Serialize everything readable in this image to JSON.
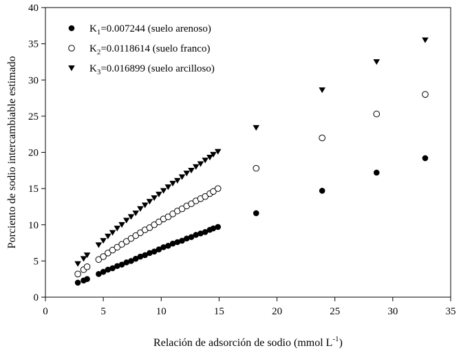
{
  "chart_data": {
    "type": "scatter",
    "xlabel": "Relación de adsorción de sodio (mmol L",
    "xlabel_sup": "-1",
    "xlabel_end": ")",
    "ylabel": "Porciento de sodio intercambiable estimado",
    "xlim": [
      0,
      35
    ],
    "ylim": [
      0,
      40
    ],
    "xticks": [
      0,
      5,
      10,
      15,
      20,
      25,
      30,
      35
    ],
    "yticks": [
      0,
      5,
      10,
      15,
      20,
      25,
      30,
      35,
      40
    ],
    "legend_position": "top-left",
    "series": [
      {
        "name": "K1=0.007244 (suelo arenoso)",
        "legend_prefix": "K",
        "legend_sub": "1",
        "legend_rest": "=0.007244 (suelo arenoso)",
        "marker": "filled-circle",
        "k": 0.007244,
        "x": [
          2.8,
          3.3,
          3.6,
          4.6,
          5.0,
          5.4,
          5.8,
          6.2,
          6.6,
          7.0,
          7.4,
          7.8,
          8.2,
          8.6,
          9.0,
          9.4,
          9.8,
          10.2,
          10.6,
          11.0,
          11.4,
          11.8,
          12.2,
          12.6,
          13.0,
          13.4,
          13.8,
          14.2,
          14.5,
          14.9,
          18.2,
          23.9,
          28.6,
          32.8
        ],
        "y": [
          2.0,
          2.3,
          2.5,
          3.2,
          3.5,
          3.8,
          4.0,
          4.3,
          4.5,
          4.8,
          5.0,
          5.3,
          5.6,
          5.8,
          6.1,
          6.3,
          6.6,
          6.9,
          7.1,
          7.4,
          7.6,
          7.8,
          8.1,
          8.3,
          8.6,
          8.8,
          9.0,
          9.3,
          9.5,
          9.7,
          11.6,
          14.7,
          17.2,
          19.2
        ]
      },
      {
        "name": "K2=0.0118614 (suelo franco)",
        "legend_prefix": "K",
        "legend_sub": "2",
        "legend_rest": "=0.0118614 (suelo franco)",
        "marker": "open-circle",
        "k": 0.0118614,
        "x": [
          2.8,
          3.3,
          3.6,
          4.6,
          5.0,
          5.4,
          5.8,
          6.2,
          6.6,
          7.0,
          7.4,
          7.8,
          8.2,
          8.6,
          9.0,
          9.4,
          9.8,
          10.2,
          10.6,
          11.0,
          11.4,
          11.8,
          12.2,
          12.6,
          13.0,
          13.4,
          13.8,
          14.2,
          14.5,
          14.9,
          18.2,
          23.9,
          28.6,
          32.8
        ],
        "y": [
          3.2,
          3.8,
          4.2,
          5.2,
          5.6,
          6.1,
          6.5,
          6.9,
          7.3,
          7.7,
          8.1,
          8.5,
          8.9,
          9.3,
          9.6,
          10.0,
          10.4,
          10.8,
          11.1,
          11.5,
          11.9,
          12.2,
          12.6,
          12.9,
          13.3,
          13.6,
          13.9,
          14.3,
          14.6,
          15.0,
          17.8,
          22.0,
          25.3,
          28.0
        ]
      },
      {
        "name": "K3=0.016899 (suelo arcilloso)",
        "legend_prefix": "K",
        "legend_sub": "3",
        "legend_rest": "=0.016899 (suelo arcilloso)",
        "marker": "filled-triangle-down",
        "k": 0.016899,
        "x": [
          2.8,
          3.3,
          3.6,
          4.6,
          5.0,
          5.4,
          5.8,
          6.2,
          6.6,
          7.0,
          7.4,
          7.8,
          8.2,
          8.6,
          9.0,
          9.4,
          9.8,
          10.2,
          10.6,
          11.0,
          11.4,
          11.8,
          12.2,
          12.6,
          13.0,
          13.4,
          13.8,
          14.2,
          14.5,
          14.9,
          18.2,
          23.9,
          28.6,
          32.8
        ],
        "y": [
          4.6,
          5.3,
          5.8,
          7.2,
          7.8,
          8.4,
          8.9,
          9.5,
          10.0,
          10.6,
          11.1,
          11.6,
          12.2,
          12.7,
          13.2,
          13.7,
          14.2,
          14.7,
          15.2,
          15.7,
          16.1,
          16.6,
          17.1,
          17.5,
          18.0,
          18.4,
          18.9,
          19.3,
          19.7,
          20.1,
          23.4,
          28.6,
          32.5,
          35.5
        ]
      }
    ]
  }
}
